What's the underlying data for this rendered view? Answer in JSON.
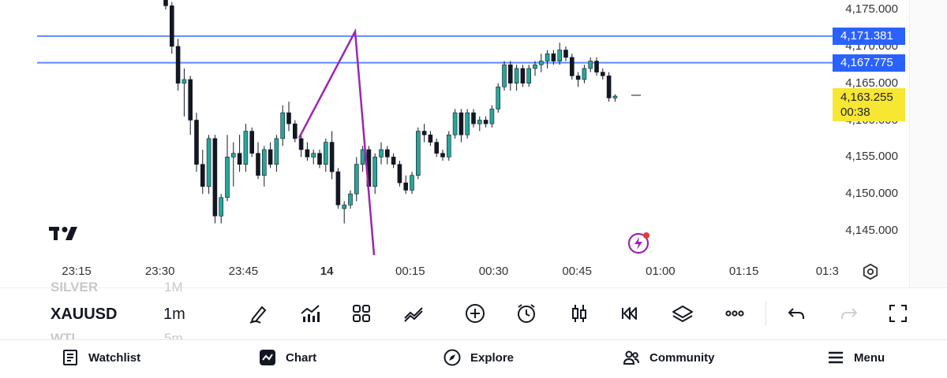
{
  "symbol": {
    "ticker": "XAUUSD",
    "timeframe": "1m",
    "prev_ticker": "SILVER",
    "prev_timeframe": "1M",
    "next_ticker": "WTI",
    "next_timeframe": "5m"
  },
  "price_axis": {
    "ticks": [
      "4,175.000",
      "4,170.000",
      "4,165.000",
      "4,160.000",
      "4,155.000",
      "4,150.000",
      "4,145.000"
    ],
    "alert_lines": [
      {
        "label": "4,171.381",
        "price": 4171.381
      },
      {
        "label": "4,167.775",
        "price": 4167.775
      }
    ],
    "current": {
      "price_label": "4,163.255",
      "countdown": "00:38",
      "price": 4163.255
    }
  },
  "time_axis": {
    "ticks": [
      {
        "label": "23:15",
        "bold": false
      },
      {
        "label": "23:30",
        "bold": false
      },
      {
        "label": "23:45",
        "bold": false
      },
      {
        "label": "14",
        "bold": true
      },
      {
        "label": "00:15",
        "bold": false
      },
      {
        "label": "00:30",
        "bold": false
      },
      {
        "label": "00:45",
        "bold": false
      },
      {
        "label": "01:00",
        "bold": false
      },
      {
        "label": "01:15",
        "bold": false
      },
      {
        "label": "01:3",
        "bold": false
      }
    ]
  },
  "chart_data": {
    "type": "candlestick",
    "instrument": "XAUUSD",
    "interval": "1m",
    "ylim": [
      4142.5,
      4177.0
    ],
    "candles": [
      [
        4178.0,
        4179.0,
        4175.0,
        4175.5
      ],
      [
        4175.5,
        4176.0,
        4169.0,
        4170.0
      ],
      [
        4170.0,
        4171.0,
        4164.0,
        4165.0
      ],
      [
        4165.0,
        4167.0,
        4160.5,
        4165.5
      ],
      [
        4165.5,
        4166.0,
        4158.0,
        4160.0
      ],
      [
        4160.0,
        4161.0,
        4153.0,
        4154.0
      ],
      [
        4154.0,
        4156.0,
        4150.0,
        4151.0
      ],
      [
        4151.0,
        4158.0,
        4150.0,
        4157.5
      ],
      [
        4157.5,
        4158.0,
        4146.0,
        4147.0
      ],
      [
        4147.0,
        4150.0,
        4146.0,
        4149.5
      ],
      [
        4149.5,
        4158.0,
        4149.0,
        4155.0
      ],
      [
        4155.0,
        4157.0,
        4151.0,
        4155.5
      ],
      [
        4155.5,
        4158.0,
        4153.0,
        4154.0
      ],
      [
        4154.0,
        4159.5,
        4153.0,
        4158.5
      ],
      [
        4158.5,
        4159.0,
        4155.0,
        4155.5
      ],
      [
        4155.5,
        4157.0,
        4152.0,
        4152.5
      ],
      [
        4152.5,
        4156.5,
        4151.0,
        4156.0
      ],
      [
        4156.0,
        4157.0,
        4153.5,
        4154.0
      ],
      [
        4154.0,
        4158.0,
        4153.0,
        4157.5
      ],
      [
        4157.5,
        4162.0,
        4156.5,
        4161.0
      ],
      [
        4161.0,
        4162.5,
        4158.5,
        4159.5
      ],
      [
        4159.5,
        4160.0,
        4157.0,
        4157.5
      ],
      [
        4157.5,
        4158.0,
        4155.0,
        4156.0
      ],
      [
        4156.0,
        4157.0,
        4154.5,
        4155.0
      ],
      [
        4155.0,
        4156.0,
        4154.0,
        4155.5
      ],
      [
        4155.5,
        4156.0,
        4153.5,
        4154.0
      ],
      [
        4154.0,
        4157.5,
        4153.0,
        4157.0
      ],
      [
        4157.0,
        4158.5,
        4152.0,
        4153.0
      ],
      [
        4153.0,
        4153.5,
        4148.0,
        4148.5
      ],
      [
        4148.0,
        4149.0,
        4146.0,
        4148.5
      ],
      [
        4148.5,
        4150.5,
        4148.0,
        4150.0
      ],
      [
        4150.0,
        4155.0,
        4149.0,
        4154.0
      ],
      [
        4154.0,
        4156.5,
        4153.0,
        4156.0
      ],
      [
        4156.0,
        4156.5,
        4150.5,
        4151.0
      ],
      [
        4151.0,
        4155.5,
        4150.0,
        4155.0
      ],
      [
        4155.0,
        4157.0,
        4154.0,
        4156.0
      ],
      [
        4156.0,
        4156.5,
        4154.0,
        4155.0
      ],
      [
        4155.0,
        4155.5,
        4153.5,
        4154.0
      ],
      [
        4154.0,
        4154.5,
        4151.0,
        4151.5
      ],
      [
        4151.5,
        4152.5,
        4150.0,
        4150.5
      ],
      [
        4150.5,
        4153.0,
        4150.0,
        4152.5
      ],
      [
        4152.5,
        4159.0,
        4152.0,
        4158.5
      ],
      [
        4158.5,
        4159.5,
        4157.0,
        4158.0
      ],
      [
        4158.0,
        4158.5,
        4156.5,
        4157.0
      ],
      [
        4157.0,
        4157.5,
        4155.0,
        4155.5
      ],
      [
        4155.5,
        4156.0,
        4154.5,
        4155.0
      ],
      [
        4155.0,
        4158.5,
        4154.5,
        4158.0
      ],
      [
        4158.0,
        4161.5,
        4157.5,
        4161.0
      ],
      [
        4161.0,
        4161.5,
        4157.0,
        4158.0
      ],
      [
        4158.0,
        4161.5,
        4157.5,
        4161.0
      ],
      [
        4161.0,
        4161.5,
        4159.0,
        4159.5
      ],
      [
        4159.5,
        4160.5,
        4158.5,
        4160.0
      ],
      [
        4160.0,
        4160.5,
        4159.0,
        4159.5
      ],
      [
        4159.5,
        4162.0,
        4159.0,
        4161.5
      ],
      [
        4161.5,
        4165.0,
        4161.0,
        4164.5
      ],
      [
        4164.5,
        4168.0,
        4164.0,
        4167.5
      ],
      [
        4167.5,
        4168.0,
        4164.0,
        4165.0
      ],
      [
        4165.0,
        4167.5,
        4164.0,
        4167.0
      ],
      [
        4167.0,
        4167.5,
        4164.5,
        4165.0
      ],
      [
        4165.0,
        4167.5,
        4164.5,
        4167.0
      ],
      [
        4167.0,
        4168.0,
        4166.0,
        4167.5
      ],
      [
        4167.5,
        4169.0,
        4166.5,
        4168.0
      ],
      [
        4168.0,
        4169.5,
        4167.0,
        4169.0
      ],
      [
        4169.0,
        4169.5,
        4167.5,
        4168.0
      ],
      [
        4168.0,
        4170.5,
        4167.5,
        4169.5
      ],
      [
        4169.5,
        4170.0,
        4168.0,
        4168.5
      ],
      [
        4168.5,
        4169.0,
        4165.5,
        4166.0
      ],
      [
        4166.0,
        4166.5,
        4164.5,
        4165.5
      ],
      [
        4165.5,
        4167.5,
        4165.0,
        4167.0
      ],
      [
        4167.0,
        4168.5,
        4166.5,
        4168.0
      ],
      [
        4168.0,
        4168.5,
        4166.0,
        4166.5
      ],
      [
        4166.5,
        4167.0,
        4165.5,
        4166.0
      ],
      [
        4166.0,
        4166.5,
        4162.5,
        4163.0
      ],
      [
        4163.0,
        4163.5,
        4162.5,
        4163.255
      ]
    ]
  },
  "toolbar": {
    "icons": [
      "pencil-icon",
      "indicators-icon",
      "layouts-icon",
      "compare-icon",
      "add-icon",
      "alert-icon",
      "candle-style-icon",
      "replay-icon",
      "layers-icon",
      "more-icon",
      "undo-icon",
      "redo-icon",
      "fullscreen-icon"
    ]
  },
  "nav": {
    "watchlist": "Watchlist",
    "chart": "Chart",
    "explore": "Explore",
    "community": "Community",
    "menu": "Menu"
  },
  "colors": {
    "up": "#26a69a",
    "down": "#131722",
    "alert_line": "#2962ff",
    "drawing": "#9c27b0",
    "current_price_bg": "#f7e733"
  }
}
